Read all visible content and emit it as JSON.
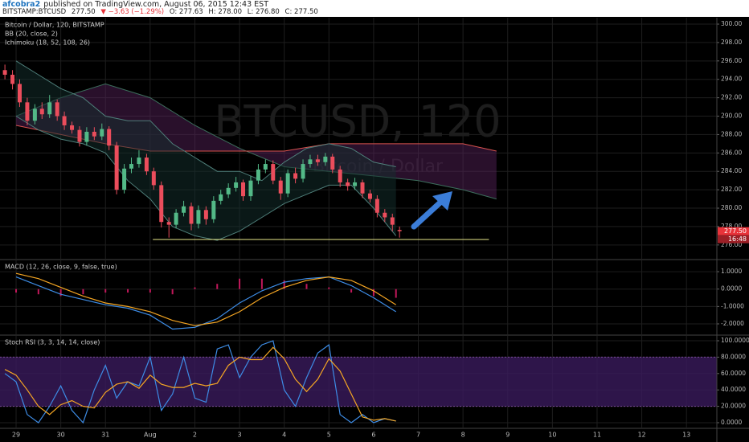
{
  "header": {
    "author": "afcobra2",
    "published": "published on TradingView.com, August 06, 2015 12:43 EST",
    "symbol": "BITSTAMP:BTCUSD",
    "price": "277.50",
    "change": "▼ −3.63 (−1.29%)",
    "ohlc": [
      "O: 277.63",
      "H: 278.00",
      "L: 276.80",
      "C: 277.50"
    ]
  },
  "chart_data": [
    {
      "type": "candlestick",
      "title": "Bitcoin / Dollar, 120, BITSTAMP",
      "watermark": [
        "BTCUSD, 120",
        "Bitcoin / Dollar"
      ],
      "up_color": "#53b987",
      "down_color": "#eb4d5c",
      "x": [
        -0.25,
        -0.08,
        0.08,
        0.25,
        0.42,
        0.58,
        0.75,
        0.92,
        1.08,
        1.25,
        1.42,
        1.58,
        1.75,
        1.92,
        2.08,
        2.25,
        2.42,
        2.58,
        2.75,
        2.92,
        3.08,
        3.25,
        3.42,
        3.58,
        3.75,
        3.92,
        4.08,
        4.25,
        4.42,
        4.58,
        4.75,
        4.92,
        5.08,
        5.25,
        5.42,
        5.58,
        5.75,
        5.92,
        6.08,
        6.25,
        6.42,
        6.58,
        6.75,
        6.92,
        7.08,
        7.25,
        7.42,
        7.58,
        7.75,
        7.92,
        8.08,
        8.25,
        8.42,
        8.58
      ],
      "open": [
        295.0,
        294.5,
        293.5,
        291.5,
        289.5,
        290.8,
        290.2,
        291.5,
        290.0,
        289.0,
        288.5,
        287.2,
        288.3,
        287.8,
        288.6,
        286.8,
        282.0,
        284.3,
        284.8,
        285.5,
        284.0,
        282.5,
        278.5,
        278.2,
        279.5,
        280.2,
        278.3,
        279.8,
        278.8,
        280.8,
        281.5,
        282.2,
        282.8,
        281.3,
        283.0,
        284.2,
        284.8,
        283.0,
        281.6,
        283.8,
        283.2,
        284.8,
        285.3,
        285.0,
        285.6,
        284.2,
        282.8,
        282.4,
        282.8,
        281.6,
        281.0,
        279.5,
        279.0,
        277.63
      ],
      "high": [
        295.6,
        295.0,
        294.0,
        292.0,
        291.3,
        291.5,
        292.3,
        291.8,
        290.5,
        289.4,
        288.9,
        288.8,
        288.8,
        289.2,
        288.9,
        287.2,
        284.8,
        285.5,
        286.3,
        285.9,
        284.4,
        282.9,
        279.0,
        279.9,
        280.8,
        280.6,
        280.3,
        280.2,
        281.3,
        282.0,
        282.7,
        283.4,
        283.1,
        283.5,
        284.8,
        285.3,
        285.2,
        283.4,
        284.2,
        284.4,
        285.3,
        285.8,
        285.8,
        286.0,
        285.9,
        284.6,
        283.2,
        283.3,
        283.1,
        282.0,
        281.4,
        279.9,
        279.4,
        278.0
      ],
      "low": [
        294.0,
        292.9,
        291.0,
        289.0,
        289.1,
        289.7,
        289.8,
        289.5,
        288.5,
        288.1,
        286.7,
        286.8,
        287.4,
        287.4,
        286.3,
        281.5,
        281.6,
        283.8,
        284.4,
        283.6,
        282.0,
        277.9,
        276.8,
        277.8,
        279.1,
        277.6,
        277.8,
        278.2,
        278.4,
        280.4,
        281.1,
        281.8,
        280.8,
        280.8,
        282.6,
        283.8,
        282.6,
        280.9,
        281.2,
        282.7,
        282.8,
        284.4,
        284.6,
        284.6,
        283.8,
        282.3,
        281.9,
        282.0,
        281.1,
        280.6,
        279.0,
        278.5,
        277.5,
        276.8
      ],
      "close": [
        294.5,
        293.5,
        291.5,
        289.5,
        290.8,
        290.2,
        291.5,
        290.0,
        289.0,
        288.5,
        287.2,
        288.3,
        287.8,
        288.6,
        286.8,
        282.0,
        284.3,
        284.8,
        285.5,
        284.0,
        282.5,
        278.5,
        278.2,
        279.5,
        280.2,
        278.3,
        279.8,
        278.8,
        280.8,
        281.5,
        282.2,
        282.8,
        281.3,
        283.0,
        284.2,
        284.8,
        283.0,
        281.6,
        283.8,
        283.2,
        284.8,
        285.3,
        285.0,
        285.6,
        284.2,
        282.8,
        282.4,
        282.8,
        281.6,
        281.0,
        279.5,
        279.0,
        278.2,
        277.5
      ],
      "bollinger": {
        "name": "BB (20, close, 2)",
        "color": "#4f7f7a",
        "fill": "#14302e",
        "x": [
          0,
          0.5,
          1,
          1.5,
          2,
          2.5,
          3,
          3.5,
          4,
          4.5,
          5,
          5.5,
          6,
          6.5,
          7,
          7.5,
          8,
          8.5
        ],
        "upper": [
          296,
          294.5,
          293,
          292,
          290,
          289.5,
          289.5,
          287,
          285.5,
          284,
          284,
          283,
          285,
          286.5,
          287,
          286.5,
          285,
          284.5
        ],
        "lower": [
          290,
          288.5,
          287.5,
          287,
          286,
          283,
          281,
          278,
          277,
          276.5,
          277.5,
          279,
          280.5,
          281.5,
          282.5,
          282.5,
          280,
          277
        ]
      },
      "ichimoku": {
        "name": "Ichimoku (18, 52, 108, 26)",
        "color": "#5a2360",
        "line_colors": [
          "#3c6e5c",
          "#d9534f"
        ],
        "x": [
          0,
          1,
          2,
          3,
          4,
          5,
          6,
          7,
          8,
          9,
          10,
          10.75
        ],
        "span_a": [
          290,
          292,
          293.5,
          292,
          289,
          286.5,
          284.5,
          284,
          283.5,
          283,
          282,
          281
        ],
        "span_b": [
          289,
          288,
          287,
          286.2,
          286.2,
          286.2,
          286.2,
          287,
          287,
          287,
          287,
          286.2
        ]
      },
      "support_line": {
        "x": [
          3.06,
          10.58
        ],
        "value": 276.6,
        "color": "#e8e88a"
      },
      "last_price": {
        "value": 277.5,
        "label": "277.50",
        "color": "#e8333a"
      },
      "countdown": "16:48",
      "ylim": [
        274.5,
        300.7
      ],
      "yticks": [
        {
          "value": 276,
          "label": "276.00"
        },
        {
          "value": 278,
          "label": "278.00"
        },
        {
          "value": 280,
          "label": "280.00"
        },
        {
          "value": 282,
          "label": "282.00"
        },
        {
          "value": 284,
          "label": "284.00"
        },
        {
          "value": 286,
          "label": "286.00"
        },
        {
          "value": 288,
          "label": "288.00"
        },
        {
          "value": 290,
          "label": "290.00"
        },
        {
          "value": 292,
          "label": "292.00"
        },
        {
          "value": 294,
          "label": "294.00"
        },
        {
          "value": 296,
          "label": "296.00"
        },
        {
          "value": 298,
          "label": "298.00"
        },
        {
          "value": 300,
          "label": "300.00"
        }
      ]
    },
    {
      "type": "macd",
      "title": "MACD (12, 26, close, 9, false, true)",
      "x": [
        0,
        0.5,
        1,
        1.5,
        2,
        2.5,
        3,
        3.5,
        4,
        4.5,
        5,
        5.5,
        6,
        6.5,
        7,
        7.5,
        8,
        8.5
      ],
      "series": [
        {
          "name": "MACD",
          "color": "#3d8ce5",
          "values": [
            0.7,
            0.2,
            -0.3,
            -0.6,
            -0.9,
            -1.1,
            -1.5,
            -2.3,
            -2.2,
            -1.7,
            -0.8,
            -0.1,
            0.4,
            0.6,
            0.7,
            0.2,
            -0.5,
            -1.3
          ]
        },
        {
          "name": "Signal",
          "color": "#f5a623",
          "values": [
            0.9,
            0.6,
            0.1,
            -0.4,
            -0.8,
            -1.0,
            -1.3,
            -1.8,
            -2.1,
            -1.9,
            -1.3,
            -0.5,
            0.1,
            0.5,
            0.7,
            0.5,
            -0.1,
            -0.9
          ]
        }
      ],
      "histogram": {
        "color": "#c2185b",
        "values": [
          -0.2,
          -0.3,
          -0.4,
          -0.3,
          -0.2,
          -0.2,
          -0.2,
          -0.3,
          0.1,
          0.3,
          0.6,
          0.6,
          0.5,
          0.3,
          0.1,
          -0.2,
          -0.4,
          -0.5
        ]
      },
      "ylim": [
        -2.6,
        1.65
      ],
      "yticks": [
        {
          "value": -2,
          "label": "-2.0000"
        },
        {
          "value": -1,
          "label": "-1.0000"
        },
        {
          "value": 0,
          "label": "0.0000"
        },
        {
          "value": 1,
          "label": "1.0000"
        }
      ]
    },
    {
      "type": "stoch",
      "title": "Stoch RSI (3, 3, 14, 14, close)",
      "x": [
        -0.25,
        0,
        0.25,
        0.5,
        0.75,
        1,
        1.25,
        1.5,
        1.75,
        2,
        2.25,
        2.5,
        2.75,
        3,
        3.25,
        3.5,
        3.75,
        4,
        4.25,
        4.5,
        4.75,
        5,
        5.25,
        5.5,
        5.75,
        6,
        6.25,
        6.5,
        6.75,
        7,
        7.25,
        7.5,
        7.75,
        8,
        8.25,
        8.5
      ],
      "series": [
        {
          "name": "K",
          "color": "#3d8ce5",
          "values": [
            60,
            50,
            10,
            0,
            20,
            45,
            15,
            0,
            40,
            70,
            30,
            50,
            45,
            80,
            15,
            35,
            80,
            30,
            25,
            90,
            95,
            55,
            80,
            95,
            100,
            40,
            20,
            55,
            85,
            95,
            10,
            0,
            10,
            0,
            5,
            2
          ]
        },
        {
          "name": "D",
          "color": "#f5a623",
          "values": [
            65,
            58,
            40,
            20,
            10,
            22,
            27,
            20,
            18,
            37,
            47,
            50,
            42,
            58,
            47,
            43,
            43,
            48,
            45,
            48,
            70,
            80,
            77,
            77,
            92,
            78,
            53,
            38,
            53,
            78,
            63,
            35,
            7,
            3,
            5,
            2
          ]
        }
      ],
      "band": [
        20,
        80
      ],
      "band_color": "#3a1a5c",
      "ylim": [
        -5.9,
        105.9
      ],
      "yticks": [
        {
          "value": 0,
          "label": "0.0000"
        },
        {
          "value": 20,
          "label": "20.0000"
        },
        {
          "value": 40,
          "label": "40.0000"
        },
        {
          "value": 60,
          "label": "60.0000"
        },
        {
          "value": 80,
          "label": "80.0000"
        },
        {
          "value": 100,
          "label": "100.0000"
        }
      ],
      "xlim": [
        -0.36,
        15.68
      ],
      "xticks": [
        {
          "value": 0,
          "label": "29"
        },
        {
          "value": 1,
          "label": "30"
        },
        {
          "value": 2,
          "label": "31"
        },
        {
          "value": 3,
          "label": "Aug"
        },
        {
          "value": 4,
          "label": "2"
        },
        {
          "value": 5,
          "label": "3"
        },
        {
          "value": 6,
          "label": "4"
        },
        {
          "value": 7,
          "label": "5"
        },
        {
          "value": 8,
          "label": "6"
        },
        {
          "value": 9,
          "label": "7"
        },
        {
          "value": 10,
          "label": "8"
        },
        {
          "value": 11,
          "label": "9"
        },
        {
          "value": 12,
          "label": "10"
        },
        {
          "value": 13,
          "label": "11"
        },
        {
          "value": 14,
          "label": "12"
        },
        {
          "value": 15,
          "label": "13"
        }
      ]
    }
  ]
}
